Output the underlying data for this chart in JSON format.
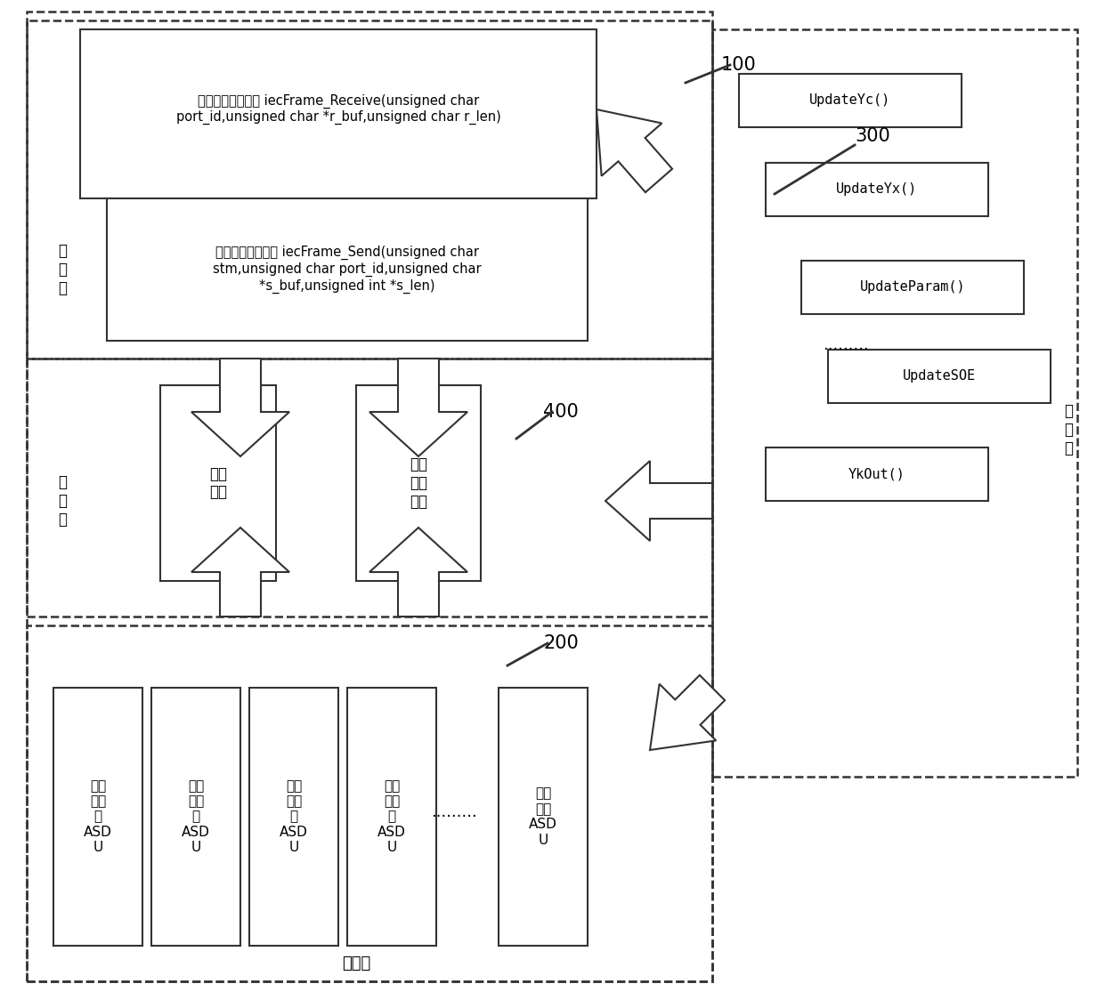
{
  "bg_color": "#ffffff",
  "text_color": "#000000",
  "receive_box_text": "数据接收接口函数 iecFrame_Receive(unsigned char\nport_id,unsigned char *r_buf,unsigned char r_len)",
  "send_box_text": "数据发送函数接口 iecFrame_Send(unsigned char\nstm,unsigned char port_id,unsigned char\n*s_buf,unsigned int *s_len)",
  "interface_layer_label": "接\n口\n层",
  "app_layer_label": "应\n用\n层",
  "data_layer_label": "数\n据\n层",
  "kernel_layer_label": "内核层",
  "parse_box_text": "解析\n流程",
  "pack_box_text": "组包\n发送\n流程",
  "asdu_boxes": [
    "遥信\n数据\n的\nASD\nU",
    "遥测\n数据\n的\nASD\nU",
    "对时\n数据\n的\nASD\nU",
    "遥控\n命令\n的\nASD\nU",
    "总召\n唤的\nASD\nU"
  ],
  "right_boxes": [
    "UpdateYc()",
    "UpdateYx()",
    "UpdateParam()",
    "UpdateSOE",
    "YkOut()"
  ],
  "label_100": "100",
  "label_200": "200",
  "label_300": "300",
  "label_400": "400",
  "font_size_text": 10.5,
  "font_size_label": 12,
  "font_size_number": 15,
  "font_size_asdu": 11,
  "font_size_right": 11
}
